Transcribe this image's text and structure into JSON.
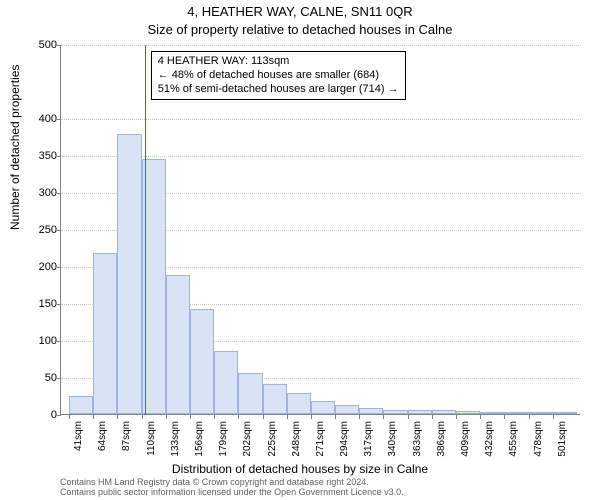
{
  "titles": {
    "line1": "4, HEATHER WAY, CALNE, SN11 0QR",
    "line2": "Size of property relative to detached houses in Calne"
  },
  "axes": {
    "ylabel": "Number of detached properties",
    "xlabel": "Distribution of detached houses by size in Calne"
  },
  "chart": {
    "type": "histogram",
    "ylim": [
      0,
      500
    ],
    "yticks": [
      0,
      50,
      100,
      150,
      200,
      250,
      300,
      350,
      400,
      500
    ],
    "x_start": 41,
    "x_bin_width": 23,
    "x_bin_count": 21,
    "bar_fill": "#d9e3f5",
    "bar_stroke": "#9fb6dc",
    "grid_color": "#c8c8c8",
    "axis_color": "#808080",
    "background_color": "#ffffff",
    "values": [
      25,
      218,
      378,
      345,
      188,
      142,
      85,
      55,
      40,
      28,
      18,
      12,
      8,
      6,
      5,
      5,
      4,
      3,
      3,
      2,
      2
    ],
    "marker": {
      "value_sqm": 113,
      "color": "#d03030"
    }
  },
  "annotation": {
    "line1": "4 HEATHER WAY: 113sqm",
    "line2": "← 48% of detached houses are smaller (684)",
    "line3": "51% of semi-detached houses are larger (714) →"
  },
  "footer": {
    "line1": "Contains HM Land Registry data © Crown copyright and database right 2024.",
    "line2": "Contains public sector information licensed under the Open Government Licence v3.0."
  }
}
